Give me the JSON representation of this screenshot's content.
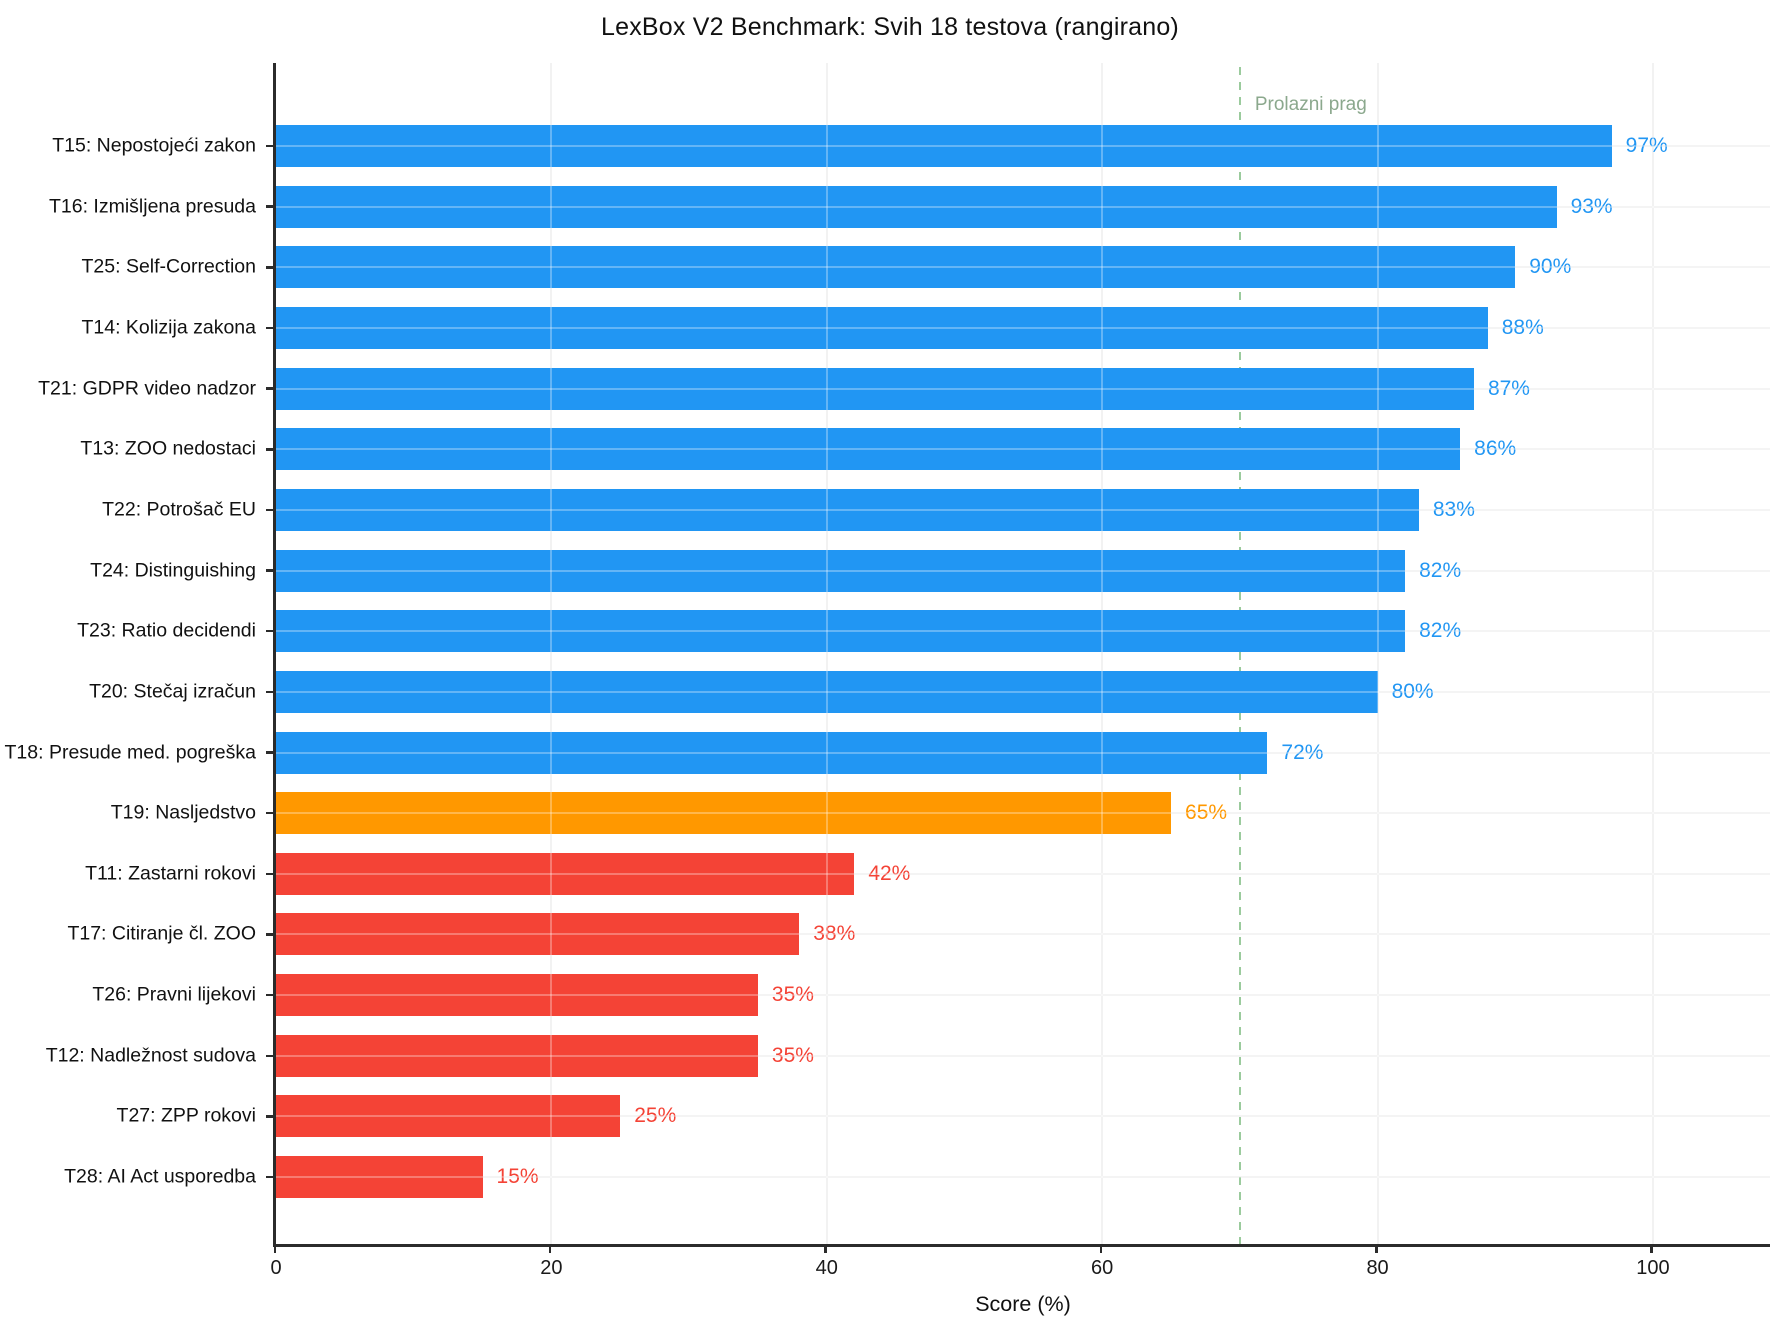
{
  "chart_data": {
    "type": "bar",
    "orientation": "horizontal",
    "title": "LexBox V2 Benchmark: Svih 18 testova (rangirano)",
    "xlabel": "Score (%)",
    "categories": [
      "T15: Nepostojeći zakon",
      "T16: Izmišljena presuda",
      "T25: Self-Correction",
      "T14: Kolizija zakona",
      "T21: GDPR video nadzor",
      "T13: ZOO nedostaci",
      "T22: Potrošač EU",
      "T24: Distinguishing",
      "T23: Ratio decidendi",
      "T20: Stečaj izračun",
      "T18: Presude med. pogreška",
      "T19: Nasljedstvo",
      "T11: Zastarni rokovi",
      "T17: Citiranje čl. ZOO",
      "T26: Pravni lijekovi",
      "T12: Nadležnost sudova",
      "T27: ZPP rokovi",
      "T28: AI Act usporedba"
    ],
    "values": [
      97,
      93,
      90,
      88,
      87,
      86,
      83,
      82,
      82,
      80,
      72,
      65,
      42,
      38,
      35,
      35,
      25,
      15
    ],
    "value_labels": [
      "97%",
      "93%",
      "90%",
      "88%",
      "87%",
      "86%",
      "83%",
      "82%",
      "82%",
      "80%",
      "72%",
      "65%",
      "42%",
      "38%",
      "35%",
      "35%",
      "25%",
      "15%"
    ],
    "bar_colors": [
      "#2196f3",
      "#2196f3",
      "#2196f3",
      "#2196f3",
      "#2196f3",
      "#2196f3",
      "#2196f3",
      "#2196f3",
      "#2196f3",
      "#2196f3",
      "#2196f3",
      "#ff9800",
      "#f44336",
      "#f44336",
      "#f44336",
      "#f44336",
      "#f44336",
      "#f44336"
    ],
    "palette": {
      "high": "#2196f3",
      "mid": "#ff9800",
      "low": "#f44336",
      "threshold_line": "#9bcb9d",
      "threshold_text": "#8ba88d",
      "grid": "#ededed",
      "axis": "#2b2b2b"
    },
    "xticks": [
      0,
      20,
      40,
      60,
      80,
      100
    ],
    "xlim": [
      0,
      108.5
    ],
    "grid": "on",
    "legend": "none",
    "threshold": {
      "value": 70,
      "label": "Prolazni prag"
    }
  }
}
